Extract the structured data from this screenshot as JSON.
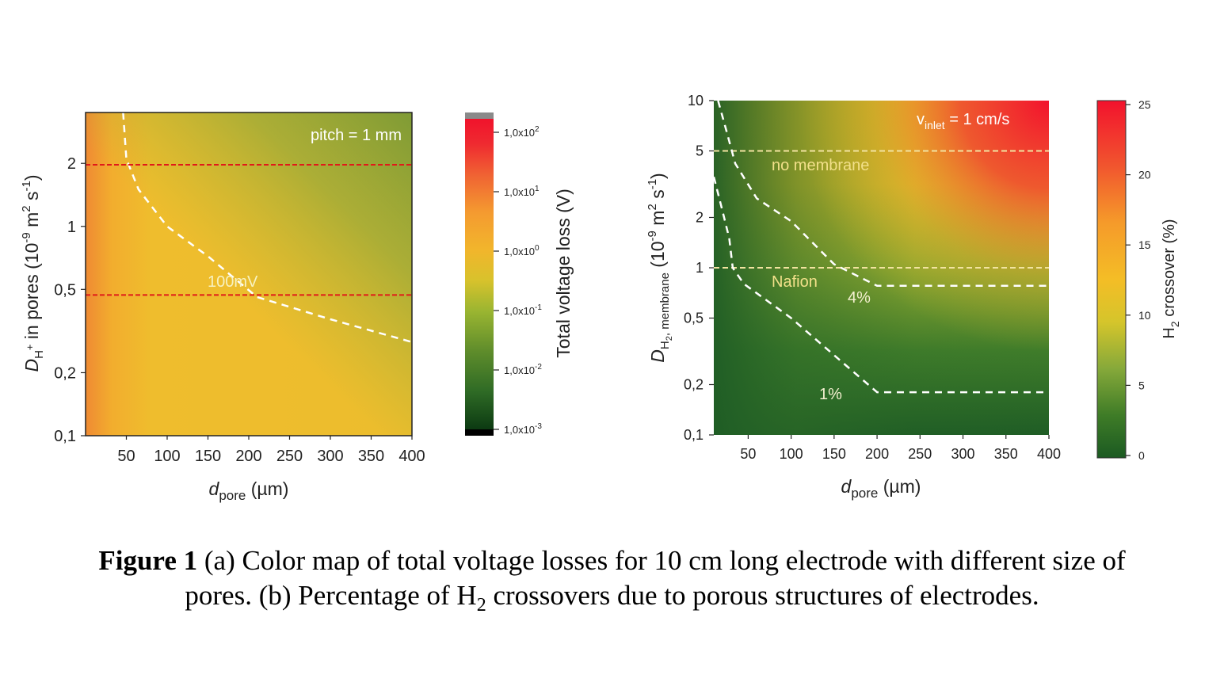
{
  "chart_data": [
    {
      "type": "heatmap",
      "panel": "a",
      "x": {
        "label_main": "d",
        "label_sub": "pore",
        "label_unit": " (µm)",
        "range": [
          0,
          400
        ],
        "ticks": [
          50,
          100,
          150,
          200,
          250,
          300,
          350,
          400
        ]
      },
      "y": {
        "scale": "log",
        "label_prefix": "D",
        "label_sub": "H",
        "label_sup": "+",
        "label_rest": " in pores (10",
        "label_exp": "-9",
        "label_m": " m",
        "label_m_exp": "2",
        "label_s": " s",
        "label_s_exp": "-1",
        "label_end": ")",
        "range": [
          0.1,
          3.5
        ],
        "ticks": [
          0.1,
          0.2,
          0.5,
          1,
          2
        ],
        "tick_labels": [
          "0,1",
          "0,2",
          "0,5",
          "1",
          "2"
        ]
      },
      "colorbar": {
        "title": "Total voltage loss (V)",
        "scale": "log",
        "ticks": [
          {
            "mantissa": "1,0x10",
            "exp": "2",
            "value": 100
          },
          {
            "mantissa": "1,0x10",
            "exp": "1",
            "value": 10
          },
          {
            "mantissa": "1,0x10",
            "exp": "0",
            "value": 1
          },
          {
            "mantissa": "1,0x10",
            "exp": "-1",
            "value": 0.1
          },
          {
            "mantissa": "1,0x10",
            "exp": "-2",
            "value": 0.01
          },
          {
            "mantissa": "1,0x10",
            "exp": "-3",
            "value": 0.001
          }
        ]
      },
      "annotations": {
        "pitch": "pitch = 1 mm",
        "contour_label": "100mV",
        "contour_100mV": [
          [
            46,
            3.5
          ],
          [
            50,
            2.1
          ],
          [
            65,
            1.5
          ],
          [
            100,
            1.0
          ],
          [
            150,
            0.72
          ],
          [
            210,
            0.46
          ],
          [
            300,
            0.36
          ],
          [
            400,
            0.28
          ]
        ],
        "red_lines": [
          1.97,
          0.47
        ]
      }
    },
    {
      "type": "heatmap",
      "panel": "b",
      "x": {
        "label_main": "d",
        "label_sub": "pore",
        "label_unit": " (µm)",
        "range": [
          10,
          400
        ],
        "ticks": [
          50,
          100,
          150,
          200,
          250,
          300,
          350,
          400
        ]
      },
      "y": {
        "scale": "log",
        "label_prefix": "D",
        "label_sub": "H",
        "label_sub2": "2",
        "label_sub3": ", membrane",
        "label_rest": " (10",
        "label_exp": "-9",
        "label_m": " m",
        "label_m_exp": "2",
        "label_s": " s",
        "label_s_exp": "-1",
        "label_end": ")",
        "range": [
          0.1,
          10
        ],
        "ticks": [
          0.1,
          0.2,
          0.5,
          1,
          2,
          5,
          10
        ],
        "tick_labels": [
          "0,1",
          "0,2",
          "0,5",
          "1",
          "2",
          "5",
          "10"
        ]
      },
      "colorbar": {
        "title_main": "H",
        "title_sub": "2",
        "title_rest": " crossover (%)",
        "range": [
          0,
          25
        ],
        "ticks": [
          0,
          5,
          10,
          15,
          20,
          25
        ]
      },
      "annotations": {
        "inlet_main": "v",
        "inlet_sub": "inlet",
        "inlet_rest": " = 1 cm/s",
        "no_membrane": "no membrane",
        "nafion": "Nafion",
        "label_4pct": "4%",
        "label_1pct": "1%",
        "dashed_levels": [
          5,
          1
        ],
        "contour_4pct": [
          [
            15,
            10
          ],
          [
            25,
            6.5
          ],
          [
            35,
            4.2
          ],
          [
            60,
            2.6
          ],
          [
            100,
            1.9
          ],
          [
            150,
            1.05
          ],
          [
            200,
            0.78
          ],
          [
            400,
            0.78
          ]
        ],
        "contour_1pct": [
          [
            10,
            3.5
          ],
          [
            20,
            2.2
          ],
          [
            28,
            1.5
          ],
          [
            32,
            1.0
          ],
          [
            45,
            0.8
          ],
          [
            100,
            0.5
          ],
          [
            150,
            0.3
          ],
          [
            200,
            0.18
          ],
          [
            400,
            0.18
          ]
        ]
      }
    }
  ],
  "caption": {
    "bold": "Figure 1",
    "line1": " (a) Color map of total voltage losses for 10 cm long electrode with different size of",
    "line2a": "pores. (b) Percentage of H",
    "line2sub": "2",
    "line2b": " crossovers due to porous structures of electrodes."
  }
}
